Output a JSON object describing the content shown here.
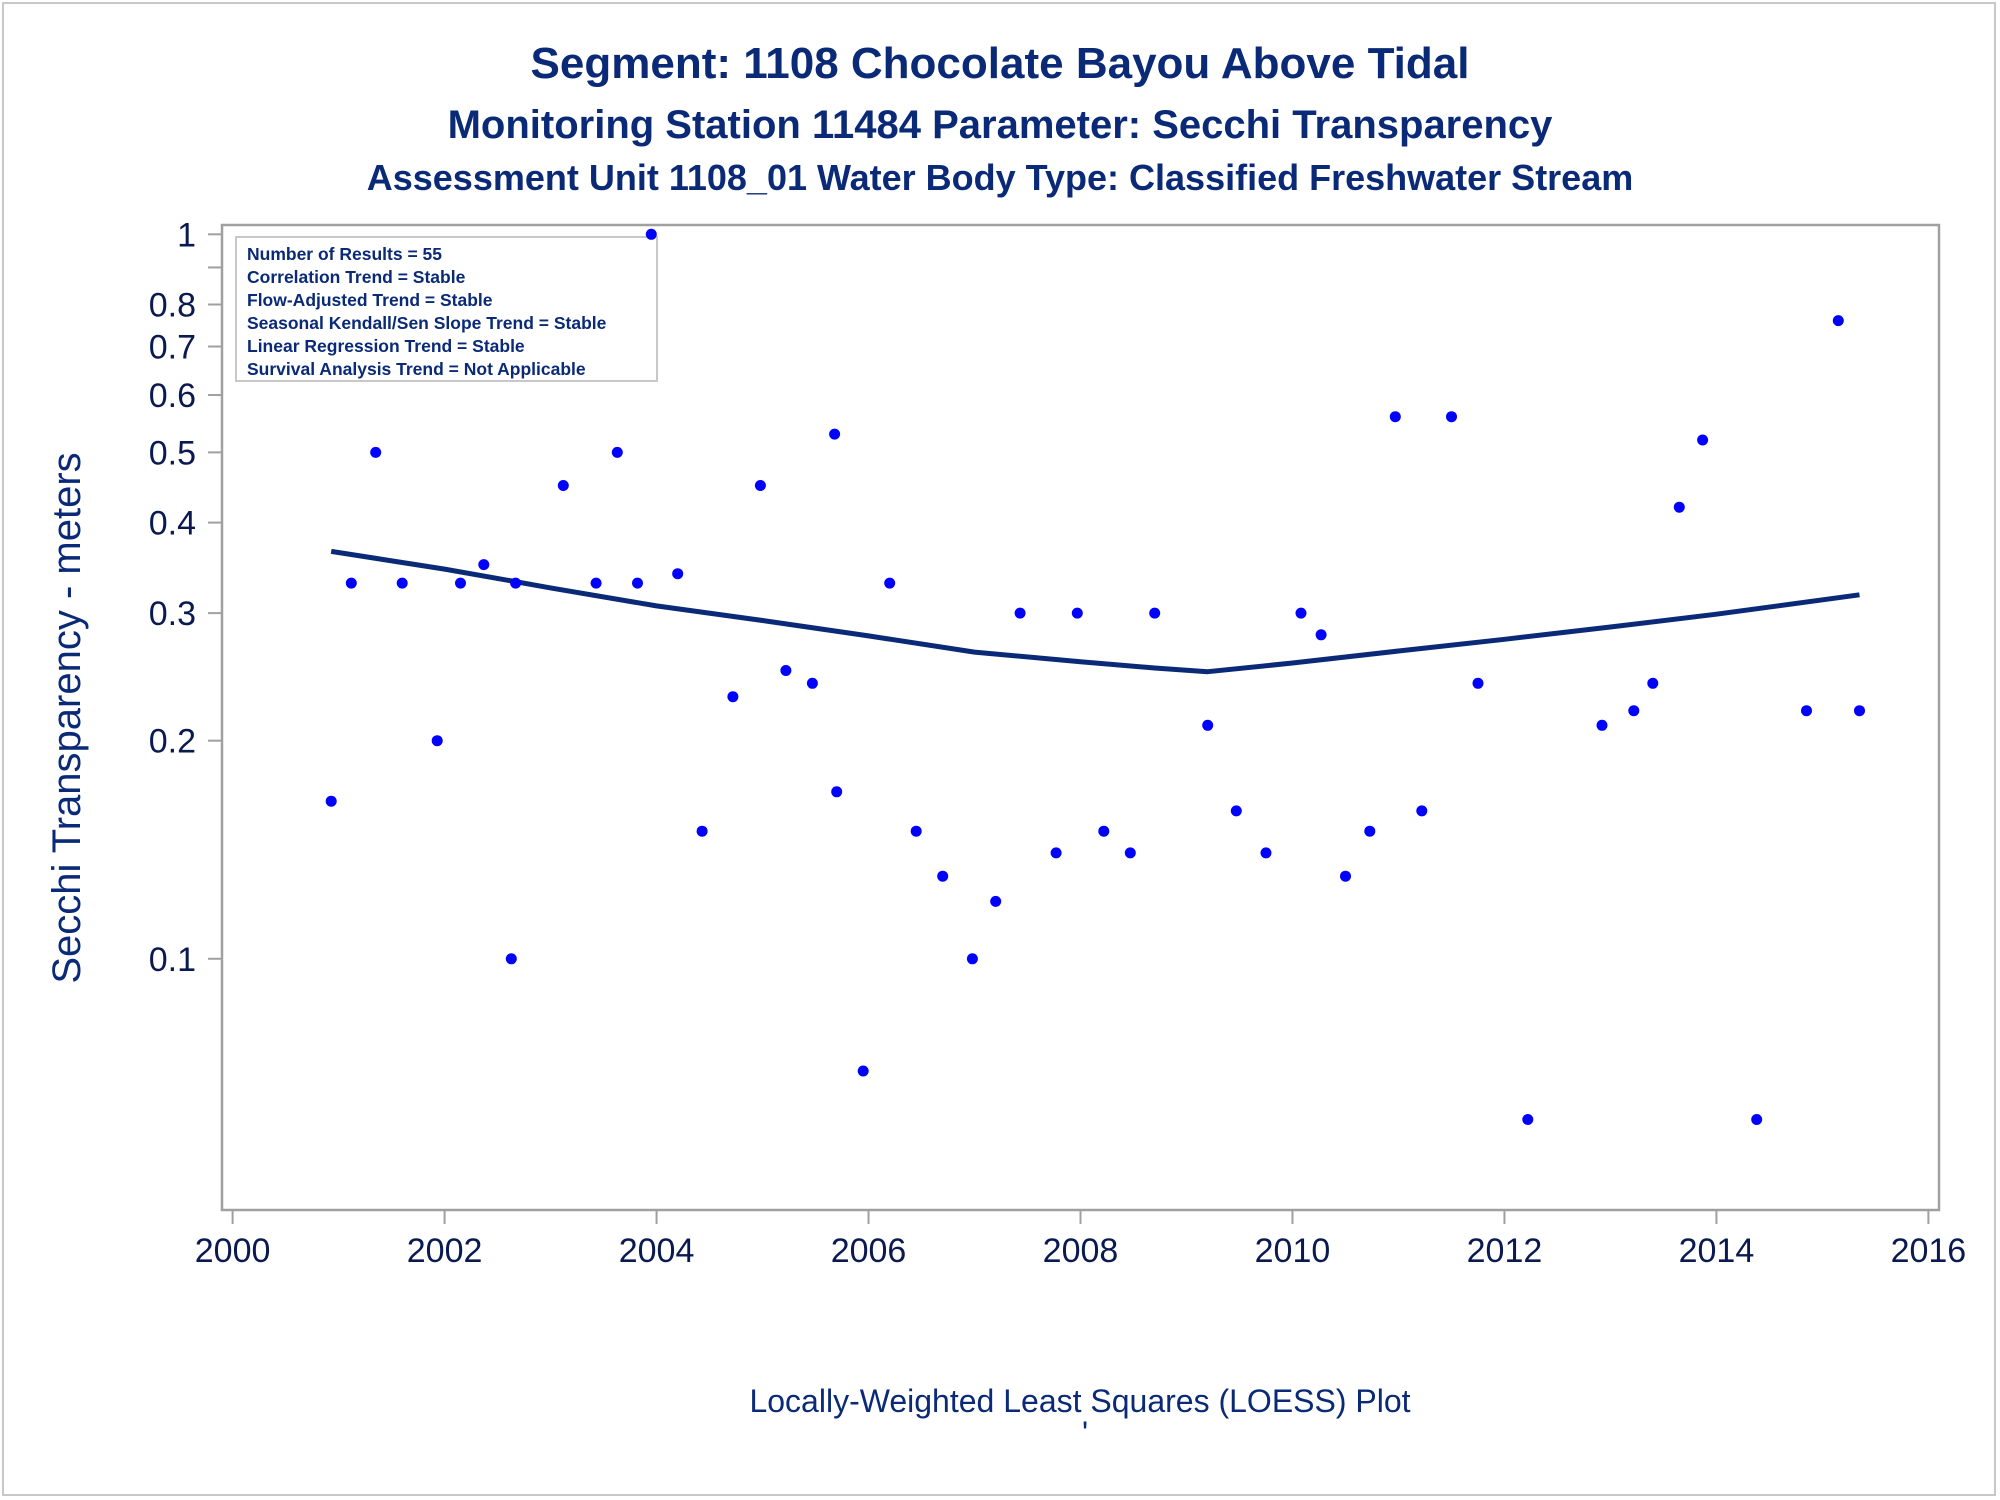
{
  "titles": {
    "line1": "Segment: 1108  Chocolate Bayou Above Tidal",
    "line2": "Monitoring Station 11484 Parameter: Secchi Transparency",
    "line3": "Assessment Unit 1108_01   Water Body Type: Classified Freshwater Stream"
  },
  "footnote": {
    "main": "Locally-Weighted Least Squares (LOESS) Plot",
    "mark": "'"
  },
  "inset_box": [
    "Number of Results = 55",
    "Correlation Trend = Stable",
    "Flow-Adjusted Trend = Stable",
    "Seasonal Kendall/Sen Slope Trend = Stable",
    "Linear Regression Trend = Stable",
    "Survival Analysis Trend = Not Applicable"
  ],
  "colors": {
    "points": "#0000ff",
    "loess": "#0a2a78",
    "text": "#0a2a78",
    "axis": "#a0a0a0"
  },
  "chart_data": {
    "type": "scatter",
    "ylabel": "Secchi Transparency - meters",
    "xlabel": "",
    "x_scale": "linear (year)",
    "y_scale": "log",
    "xlim": [
      1999.9,
      2016.1
    ],
    "ylim": [
      0.045,
      1.03
    ],
    "x_ticks": [
      "2000",
      "2002",
      "2004",
      "2006",
      "2008",
      "2010",
      "2012",
      "2014",
      "2016"
    ],
    "y_ticks": [
      "0.1",
      "0.2",
      "0.3",
      "0.4",
      "0.5",
      "0.6",
      "0.7",
      "0.8",
      "1"
    ],
    "grid": false,
    "points": [
      [
        2000.93,
        0.165
      ],
      [
        2001.12,
        0.33
      ],
      [
        2001.35,
        0.5
      ],
      [
        2001.6,
        0.33
      ],
      [
        2001.93,
        0.2
      ],
      [
        2002.15,
        0.33
      ],
      [
        2002.37,
        0.35
      ],
      [
        2002.63,
        0.1
      ],
      [
        2002.67,
        0.33
      ],
      [
        2003.12,
        0.45
      ],
      [
        2003.43,
        0.33
      ],
      [
        2003.63,
        0.5
      ],
      [
        2003.82,
        0.33
      ],
      [
        2003.95,
        1.0
      ],
      [
        2004.2,
        0.34
      ],
      [
        2004.43,
        0.15
      ],
      [
        2004.72,
        0.23
      ],
      [
        2004.98,
        0.45
      ],
      [
        2005.22,
        0.25
      ],
      [
        2005.47,
        0.24
      ],
      [
        2005.68,
        0.53
      ],
      [
        2005.7,
        0.17
      ],
      [
        2005.95,
        0.07
      ],
      [
        2006.2,
        0.33
      ],
      [
        2006.45,
        0.15
      ],
      [
        2006.7,
        0.13
      ],
      [
        2006.98,
        0.1
      ],
      [
        2007.2,
        0.12
      ],
      [
        2007.43,
        0.3
      ],
      [
        2007.77,
        0.14
      ],
      [
        2007.97,
        0.3
      ],
      [
        2008.22,
        0.15
      ],
      [
        2008.47,
        0.14
      ],
      [
        2008.7,
        0.3
      ],
      [
        2009.2,
        0.21
      ],
      [
        2009.47,
        0.16
      ],
      [
        2009.75,
        0.14
      ],
      [
        2010.08,
        0.3
      ],
      [
        2010.27,
        0.28
      ],
      [
        2010.5,
        0.13
      ],
      [
        2010.73,
        0.15
      ],
      [
        2010.97,
        0.56
      ],
      [
        2011.22,
        0.16
      ],
      [
        2011.5,
        0.56
      ],
      [
        2011.75,
        0.24
      ],
      [
        2012.22,
        0.06
      ],
      [
        2012.92,
        0.21
      ],
      [
        2013.22,
        0.22
      ],
      [
        2013.4,
        0.24
      ],
      [
        2013.65,
        0.42
      ],
      [
        2013.87,
        0.52
      ],
      [
        2014.38,
        0.06
      ],
      [
        2014.85,
        0.22
      ],
      [
        2015.15,
        0.76
      ],
      [
        2015.35,
        0.22
      ]
    ],
    "loess": [
      [
        2000.93,
        0.365
      ],
      [
        2002.0,
        0.345
      ],
      [
        2003.0,
        0.325
      ],
      [
        2004.0,
        0.307
      ],
      [
        2005.0,
        0.293
      ],
      [
        2006.0,
        0.279
      ],
      [
        2007.0,
        0.265
      ],
      [
        2008.0,
        0.257
      ],
      [
        2008.7,
        0.252
      ],
      [
        2009.2,
        0.249
      ],
      [
        2010.0,
        0.256
      ],
      [
        2011.0,
        0.266
      ],
      [
        2012.0,
        0.276
      ],
      [
        2013.0,
        0.287
      ],
      [
        2014.0,
        0.299
      ],
      [
        2015.35,
        0.318
      ]
    ]
  }
}
